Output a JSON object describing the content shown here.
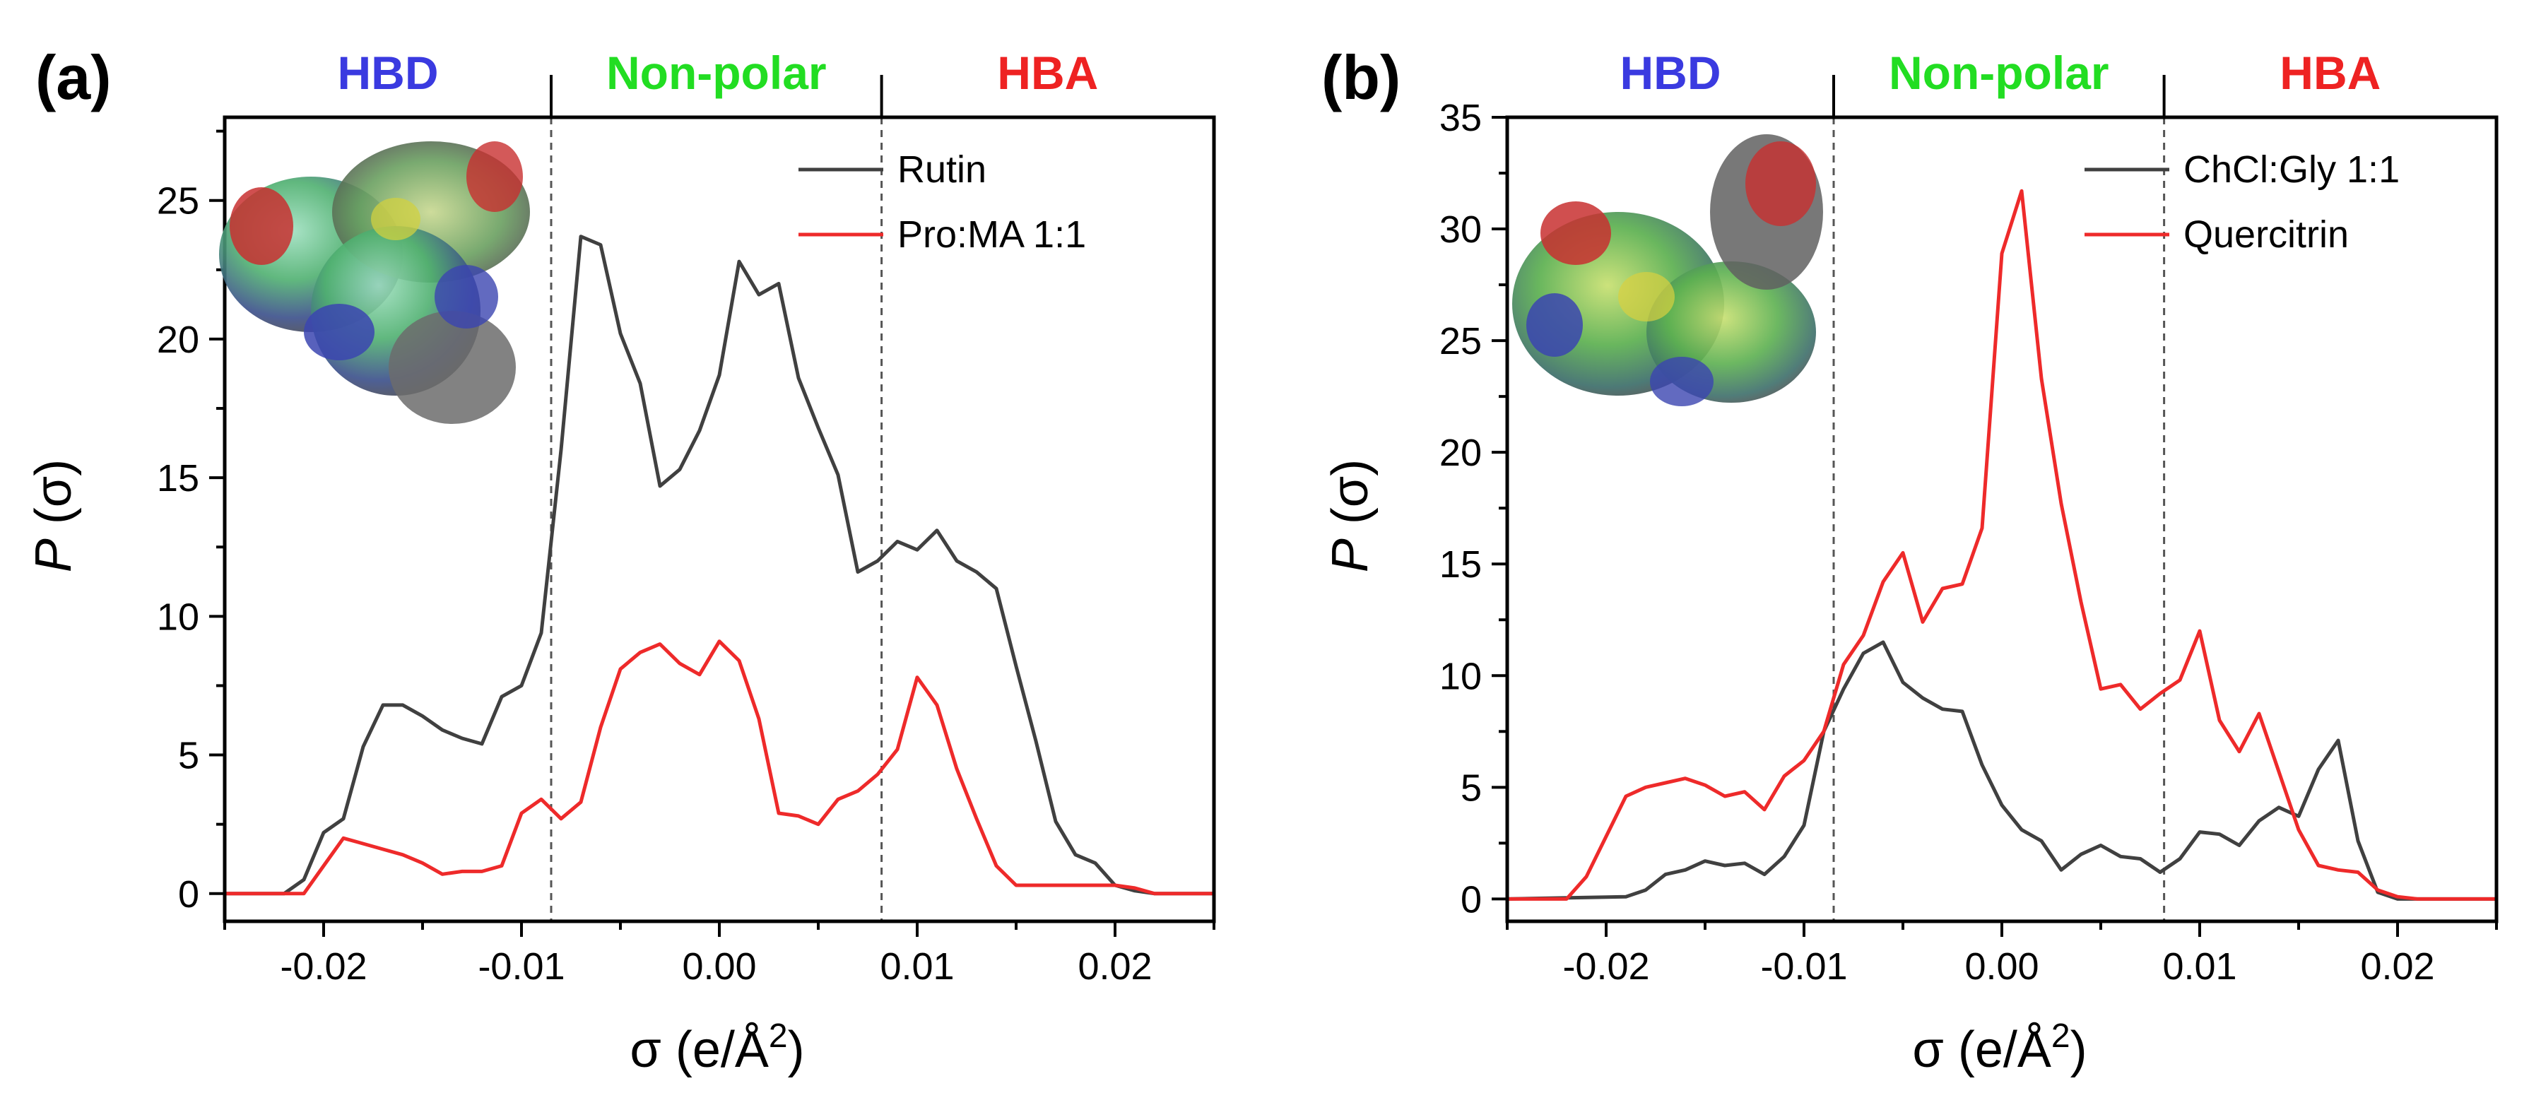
{
  "chart_data": [
    {
      "type": "line",
      "panel_label": "(a)",
      "xlabel_sym": "σ",
      "xlabel_unit": "(e/Å",
      "xlabel_sup": "2",
      "xlabel_end": ")",
      "ylabel_sym": "P",
      "ylabel_rest": "(σ)",
      "xlim": [
        -0.025,
        0.025
      ],
      "ylim": [
        -1,
        28
      ],
      "xticks": [
        -0.02,
        -0.01,
        0.0,
        0.01,
        0.02
      ],
      "xtick_labels": [
        "-0.02",
        "-0.01",
        "0.00",
        "0.01",
        "0.02"
      ],
      "yticks": [
        0,
        5,
        10,
        15,
        20,
        25
      ],
      "ytick_labels": [
        "0",
        "5",
        "10",
        "15",
        "20",
        "25"
      ],
      "region_dividers": [
        -0.0085,
        0.0082
      ],
      "regions": [
        {
          "label": "HBD",
          "color": "#3a3ae0"
        },
        {
          "label": "Non-polar",
          "color": "#22dd22"
        },
        {
          "label": "HBA",
          "color": "#ee2222"
        }
      ],
      "legend_position": "top-right",
      "series": [
        {
          "name": "Rutin",
          "color": "#404040",
          "x": [
            -0.025,
            -0.022,
            -0.021,
            -0.02,
            -0.019,
            -0.018,
            -0.017,
            -0.016,
            -0.015,
            -0.014,
            -0.013,
            -0.012,
            -0.011,
            -0.01,
            -0.009,
            -0.008,
            -0.007,
            -0.006,
            -0.005,
            -0.004,
            -0.003,
            -0.002,
            -0.001,
            0.0,
            0.001,
            0.002,
            0.003,
            0.004,
            0.005,
            0.006,
            0.007,
            0.008,
            0.009,
            0.01,
            0.011,
            0.012,
            0.013,
            0.014,
            0.015,
            0.016,
            0.017,
            0.018,
            0.019,
            0.02,
            0.021,
            0.022,
            0.025
          ],
          "y": [
            0,
            0,
            0.5,
            2.2,
            2.7,
            5.3,
            6.8,
            6.8,
            6.4,
            5.9,
            5.6,
            5.4,
            7.1,
            7.5,
            9.4,
            16.0,
            23.7,
            23.4,
            20.2,
            18.4,
            14.7,
            15.3,
            16.7,
            18.7,
            22.8,
            21.6,
            22.0,
            18.6,
            16.8,
            15.1,
            11.6,
            12.0,
            12.7,
            12.4,
            13.1,
            12.0,
            11.6,
            11.0,
            8.2,
            5.5,
            2.6,
            1.4,
            1.1,
            0.3,
            0.1,
            0,
            0
          ]
        },
        {
          "name": "Pro:MA 1:1",
          "color": "#ee2a2a",
          "x": [
            -0.025,
            -0.021,
            -0.02,
            -0.019,
            -0.018,
            -0.017,
            -0.016,
            -0.015,
            -0.014,
            -0.013,
            -0.012,
            -0.011,
            -0.01,
            -0.009,
            -0.008,
            -0.007,
            -0.006,
            -0.005,
            -0.004,
            -0.003,
            -0.002,
            -0.001,
            0.0,
            0.001,
            0.002,
            0.003,
            0.004,
            0.005,
            0.006,
            0.007,
            0.008,
            0.009,
            0.01,
            0.011,
            0.012,
            0.013,
            0.014,
            0.015,
            0.016,
            0.017,
            0.018,
            0.019,
            0.02,
            0.021,
            0.022,
            0.025
          ],
          "y": [
            0,
            0,
            1.0,
            2.0,
            1.8,
            1.6,
            1.4,
            1.1,
            0.7,
            0.8,
            0.8,
            1.0,
            2.9,
            3.4,
            2.7,
            3.3,
            6.0,
            8.1,
            8.7,
            9.0,
            8.3,
            7.9,
            9.1,
            8.4,
            6.3,
            2.9,
            2.8,
            2.5,
            3.4,
            3.7,
            4.3,
            5.2,
            7.8,
            6.8,
            4.5,
            2.7,
            1.0,
            0.3,
            0.3,
            0.3,
            0.3,
            0.3,
            0.3,
            0.2,
            0,
            0
          ]
        }
      ]
    },
    {
      "type": "line",
      "panel_label": "(b)",
      "xlabel_sym": "σ",
      "xlabel_unit": "(e/Å",
      "xlabel_sup": "2",
      "xlabel_end": ")",
      "ylabel_sym": "P",
      "ylabel_rest": "(σ)",
      "xlim": [
        -0.025,
        0.025
      ],
      "ylim": [
        -1,
        35
      ],
      "xticks": [
        -0.02,
        -0.01,
        0.0,
        0.01,
        0.02
      ],
      "xtick_labels": [
        "-0.02",
        "-0.01",
        "0.00",
        "0.01",
        "0.02"
      ],
      "yticks": [
        0,
        5,
        10,
        15,
        20,
        25,
        30,
        35
      ],
      "ytick_labels": [
        "0",
        "5",
        "10",
        "15",
        "20",
        "25",
        "30",
        "35"
      ],
      "region_dividers": [
        -0.0085,
        0.0082
      ],
      "regions": [
        {
          "label": "HBD",
          "color": "#3a3ae0"
        },
        {
          "label": "Non-polar",
          "color": "#22dd22"
        },
        {
          "label": "HBA",
          "color": "#ee2222"
        }
      ],
      "legend_position": "top-right",
      "series": [
        {
          "name": "ChCl:Gly 1:1",
          "color": "#404040",
          "x": [
            -0.025,
            -0.019,
            -0.018,
            -0.017,
            -0.016,
            -0.015,
            -0.014,
            -0.013,
            -0.012,
            -0.011,
            -0.01,
            -0.009,
            -0.008,
            -0.007,
            -0.006,
            -0.005,
            -0.004,
            -0.003,
            -0.002,
            -0.001,
            0.0,
            0.001,
            0.002,
            0.003,
            0.004,
            0.005,
            0.006,
            0.007,
            0.008,
            0.009,
            0.01,
            0.011,
            0.012,
            0.013,
            0.014,
            0.015,
            0.016,
            0.017,
            0.018,
            0.019,
            0.02,
            0.021,
            0.025
          ],
          "y": [
            0,
            0.1,
            0.4,
            1.1,
            1.3,
            1.7,
            1.5,
            1.6,
            1.1,
            1.9,
            3.3,
            7.5,
            9.4,
            11.0,
            11.5,
            9.7,
            9.0,
            8.5,
            8.4,
            6.0,
            4.2,
            3.1,
            2.6,
            1.3,
            2.0,
            2.4,
            1.9,
            1.8,
            1.2,
            1.8,
            3.0,
            2.9,
            2.4,
            3.5,
            4.1,
            3.7,
            5.8,
            7.1,
            2.6,
            0.3,
            0,
            0,
            0
          ]
        },
        {
          "name": "Quercitrin",
          "color": "#ee2a2a",
          "x": [
            -0.025,
            -0.022,
            -0.021,
            -0.02,
            -0.019,
            -0.018,
            -0.017,
            -0.016,
            -0.015,
            -0.014,
            -0.013,
            -0.012,
            -0.011,
            -0.01,
            -0.009,
            -0.008,
            -0.007,
            -0.006,
            -0.005,
            -0.004,
            -0.003,
            -0.002,
            -0.001,
            0.0,
            0.001,
            0.002,
            0.003,
            0.004,
            0.005,
            0.006,
            0.007,
            0.008,
            0.009,
            0.01,
            0.011,
            0.012,
            0.013,
            0.014,
            0.015,
            0.016,
            0.017,
            0.018,
            0.019,
            0.02,
            0.021,
            0.025
          ],
          "y": [
            0,
            0,
            1.0,
            2.8,
            4.6,
            5.0,
            5.2,
            5.4,
            5.1,
            4.6,
            4.8,
            4.0,
            5.5,
            6.2,
            7.5,
            10.5,
            11.8,
            14.2,
            15.5,
            12.4,
            13.9,
            14.1,
            16.6,
            28.9,
            31.7,
            23.3,
            17.7,
            13.3,
            9.4,
            9.6,
            8.5,
            9.2,
            9.8,
            12.0,
            8.0,
            6.6,
            8.3,
            5.7,
            3.1,
            1.5,
            1.3,
            1.2,
            0.4,
            0.1,
            0,
            0
          ]
        }
      ]
    }
  ]
}
